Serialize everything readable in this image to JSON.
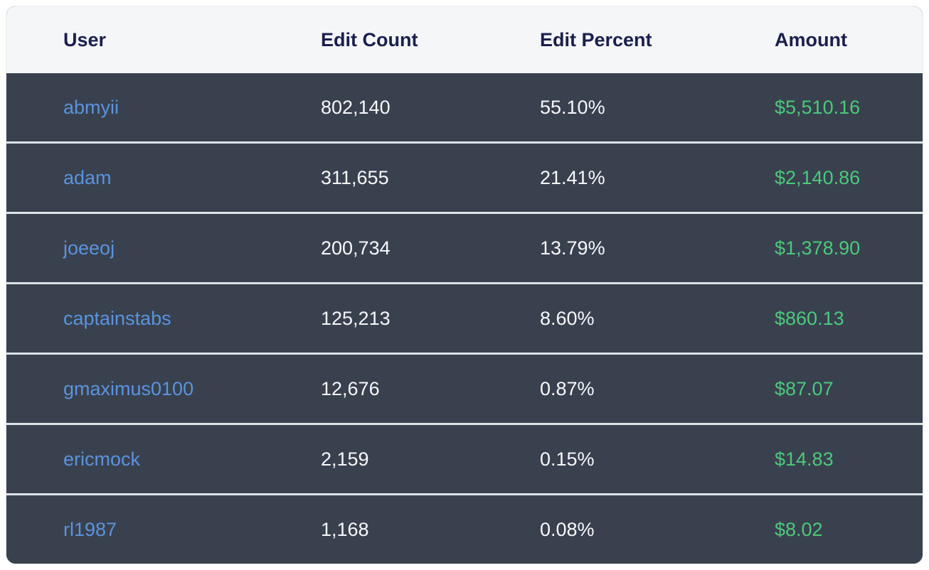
{
  "page": {
    "background": "#ffffff"
  },
  "table": {
    "columns": [
      {
        "key": "user",
        "label": "User"
      },
      {
        "key": "edit_count",
        "label": "Edit Count"
      },
      {
        "key": "edit_percent",
        "label": "Edit Percent"
      },
      {
        "key": "amount",
        "label": "Amount"
      }
    ],
    "rows": [
      {
        "user": "abmyii",
        "edit_count": "802,140",
        "edit_percent": "55.10%",
        "amount": "$5,510.16"
      },
      {
        "user": "adam",
        "edit_count": "311,655",
        "edit_percent": "21.41%",
        "amount": "$2,140.86"
      },
      {
        "user": "joeeoj",
        "edit_count": "200,734",
        "edit_percent": "13.79%",
        "amount": "$1,378.90"
      },
      {
        "user": "captainstabs",
        "edit_count": "125,213",
        "edit_percent": "8.60%",
        "amount": "$860.13"
      },
      {
        "user": "gmaximus0100",
        "edit_count": "12,676",
        "edit_percent": "0.87%",
        "amount": "$87.07"
      },
      {
        "user": "ericmock",
        "edit_count": "2,159",
        "edit_percent": "0.15%",
        "amount": "$14.83"
      },
      {
        "user": "rl1987",
        "edit_count": "1,168",
        "edit_percent": "0.08%",
        "amount": "$8.02"
      }
    ]
  },
  "colors": {
    "page_bg": "#ffffff",
    "header_bg": "#f5f6f8",
    "header_text": "#1b1f4e",
    "row_bg": "#39414f",
    "row_text": "#f7f8fa",
    "link_blue": "#5b93dd",
    "amount_green": "#4bc97a",
    "separator": "#dce4e8"
  }
}
